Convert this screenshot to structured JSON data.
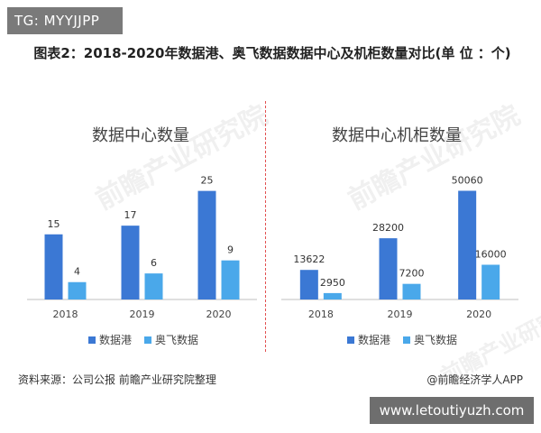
{
  "badge_top": "TG: MYYJJPP",
  "figure_title": "图表2：2018-2020年数据港、奥飞数据数据中心及机柜数量对比(单 位 ：个)",
  "watermark_text": "前瞻产业研究院",
  "source_text": "资料来源：公司公报 前瞻产业研究院整理",
  "credit_text": "@前瞻经济学人APP",
  "badge_bottom": "www.letoutiyuzh.com",
  "colors": {
    "series1": "#3b78d4",
    "series2": "#4aa8ea"
  },
  "chart_data": [
    {
      "type": "bar",
      "title": "数据中心数量",
      "categories": [
        "2018",
        "2019",
        "2020"
      ],
      "series": [
        {
          "name": "数据港",
          "values": [
            15,
            17,
            25
          ]
        },
        {
          "name": "奥飞数据",
          "values": [
            4,
            6,
            9
          ]
        }
      ],
      "ylim": [
        0,
        27
      ],
      "grid": false,
      "legend": "bottom"
    },
    {
      "type": "bar",
      "title": "数据中心机柜数量",
      "categories": [
        "2018",
        "2019",
        "2020"
      ],
      "series": [
        {
          "name": "数据港",
          "values": [
            13622,
            28200,
            50060
          ]
        },
        {
          "name": "奥飞数据",
          "values": [
            2950,
            7200,
            16000
          ]
        }
      ],
      "ylim": [
        0,
        54000
      ],
      "grid": false,
      "legend": "bottom"
    }
  ]
}
